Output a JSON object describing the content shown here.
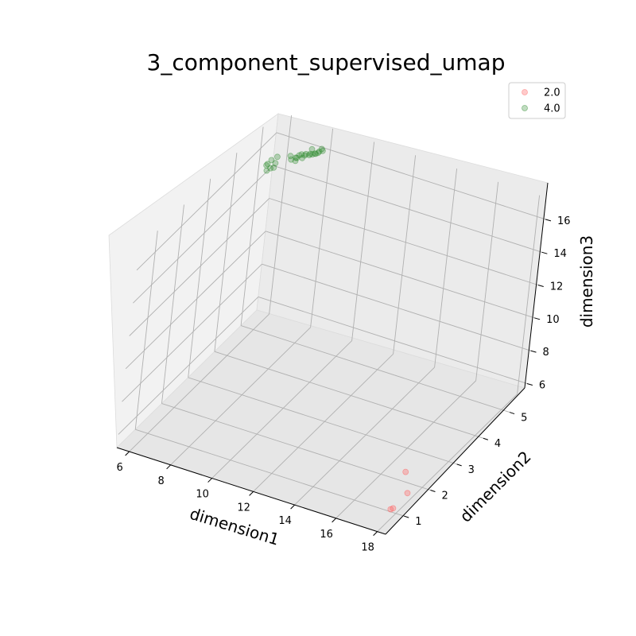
{
  "chart_data": {
    "type": "scatter",
    "title": "3_component_supervised_umap",
    "xlabel": "dimension1",
    "ylabel": "dimension2",
    "zlabel": "dimension3",
    "xlim": [
      5.4,
      18.4
    ],
    "ylim": [
      0.3,
      5.6
    ],
    "zlim": [
      5.2,
      17.3
    ],
    "xticks": [
      "6",
      "8",
      "10",
      "12",
      "14",
      "16",
      "18"
    ],
    "yticks": [
      "1",
      "2",
      "3",
      "4",
      "5"
    ],
    "zticks": [
      "6",
      "8",
      "10",
      "12",
      "14",
      "16"
    ],
    "grid": true,
    "legend_position": "top-right",
    "series": [
      {
        "name": "2.0",
        "color": "#ff6666",
        "points": [
          [
            17.2,
            1.95,
            5.9
          ],
          [
            18.0,
            1.4,
            5.8
          ],
          [
            17.9,
            0.95,
            5.55
          ],
          [
            17.9,
            0.85,
            5.65
          ]
        ]
      },
      {
        "name": "4.0",
        "color": "#2e8b2e",
        "points": [
          [
            5.75,
            5.0,
            15.1
          ],
          [
            5.85,
            5.1,
            15.3
          ],
          [
            5.95,
            5.0,
            15.0
          ],
          [
            6.05,
            5.1,
            15.2
          ],
          [
            5.9,
            4.9,
            15.0
          ],
          [
            6.0,
            5.2,
            15.4
          ],
          [
            5.8,
            5.0,
            15.2
          ],
          [
            6.1,
            5.0,
            15.1
          ],
          [
            6.5,
            5.3,
            15.5
          ],
          [
            6.7,
            5.35,
            15.4
          ],
          [
            6.8,
            5.3,
            15.5
          ],
          [
            6.9,
            5.4,
            15.6
          ],
          [
            7.0,
            5.35,
            15.5
          ],
          [
            7.1,
            5.4,
            15.7
          ],
          [
            7.2,
            5.45,
            15.6
          ],
          [
            7.3,
            5.4,
            15.8
          ],
          [
            7.4,
            5.5,
            15.7
          ],
          [
            7.5,
            5.45,
            15.8
          ],
          [
            7.6,
            5.5,
            15.9
          ],
          [
            7.7,
            5.55,
            15.9
          ],
          [
            6.6,
            5.25,
            15.4
          ],
          [
            6.75,
            5.3,
            15.3
          ],
          [
            7.05,
            5.4,
            15.6
          ],
          [
            7.35,
            5.45,
            15.7
          ],
          [
            7.55,
            5.5,
            15.8
          ],
          [
            6.85,
            5.35,
            15.6
          ],
          [
            7.25,
            5.5,
            15.9
          ],
          [
            7.65,
            5.55,
            16.0
          ]
        ]
      }
    ]
  }
}
